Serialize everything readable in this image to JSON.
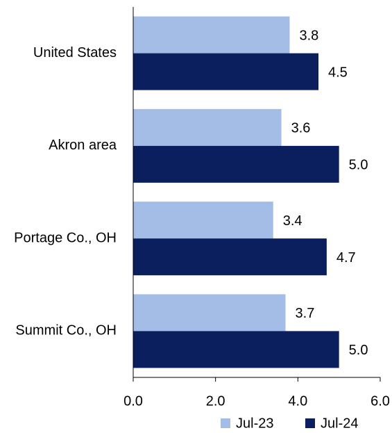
{
  "chart_data": {
    "type": "barh",
    "categories": [
      "United States",
      "Akron area",
      "Portage Co., OH",
      "Summit Co., OH"
    ],
    "series": [
      {
        "name": "Jul-23",
        "color": "#a3bde6",
        "values": [
          3.8,
          3.6,
          3.4,
          3.7
        ],
        "value_labels": [
          "3.8",
          "3.6",
          "3.4",
          "3.7"
        ]
      },
      {
        "name": "Jul-24",
        "color": "#0b1f5e",
        "values": [
          4.5,
          5.0,
          4.7,
          5.0
        ],
        "value_labels": [
          "4.5",
          "5.0",
          "4.7",
          "5.0"
        ]
      }
    ],
    "xlim": [
      0,
      6
    ],
    "xticks": [
      {
        "value": 0,
        "label": "0.0"
      },
      {
        "value": 2,
        "label": "2.0"
      },
      {
        "value": 4,
        "label": "4.0"
      },
      {
        "value": 6,
        "label": "6.0"
      }
    ],
    "legend": "bottom"
  }
}
